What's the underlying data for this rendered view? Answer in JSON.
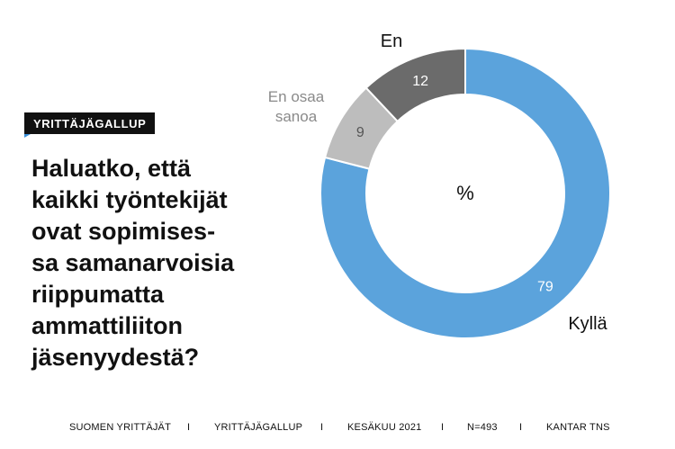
{
  "badge": {
    "label": "YRITTÄJÄGALLUP"
  },
  "question": {
    "lines": [
      "Haluatko, että",
      "kaikki työntekijät",
      "ovat sopimises-",
      "sa samanarvoisia",
      "riippumatta",
      "ammattiliiton",
      "jäsenyydestä?"
    ]
  },
  "chart_data": {
    "type": "pie",
    "variant": "donut",
    "center_label": "%",
    "slices": [
      {
        "label": "Kyllä",
        "value": 79,
        "color": "#5ba3dc",
        "value_color": "#ffffff"
      },
      {
        "label": "En osaa sanoa",
        "label_lines": [
          "En osaa",
          "sanoa"
        ],
        "value": 9,
        "color": "#bdbdbd",
        "value_color": "#555555"
      },
      {
        "label": "En",
        "value": 12,
        "color": "#6b6b6b",
        "value_color": "#ffffff"
      }
    ]
  },
  "footer": {
    "items": [
      "SUOMEN YRITTÄJÄT",
      "YRITTÄJÄGALLUP",
      "KESÄKUU 2021",
      "N=493",
      "KANTAR TNS"
    ],
    "separator": "I"
  },
  "colors": {
    "text": "#111111",
    "accent": "#3a8fd8",
    "label_grey": "#8a8a8a"
  }
}
